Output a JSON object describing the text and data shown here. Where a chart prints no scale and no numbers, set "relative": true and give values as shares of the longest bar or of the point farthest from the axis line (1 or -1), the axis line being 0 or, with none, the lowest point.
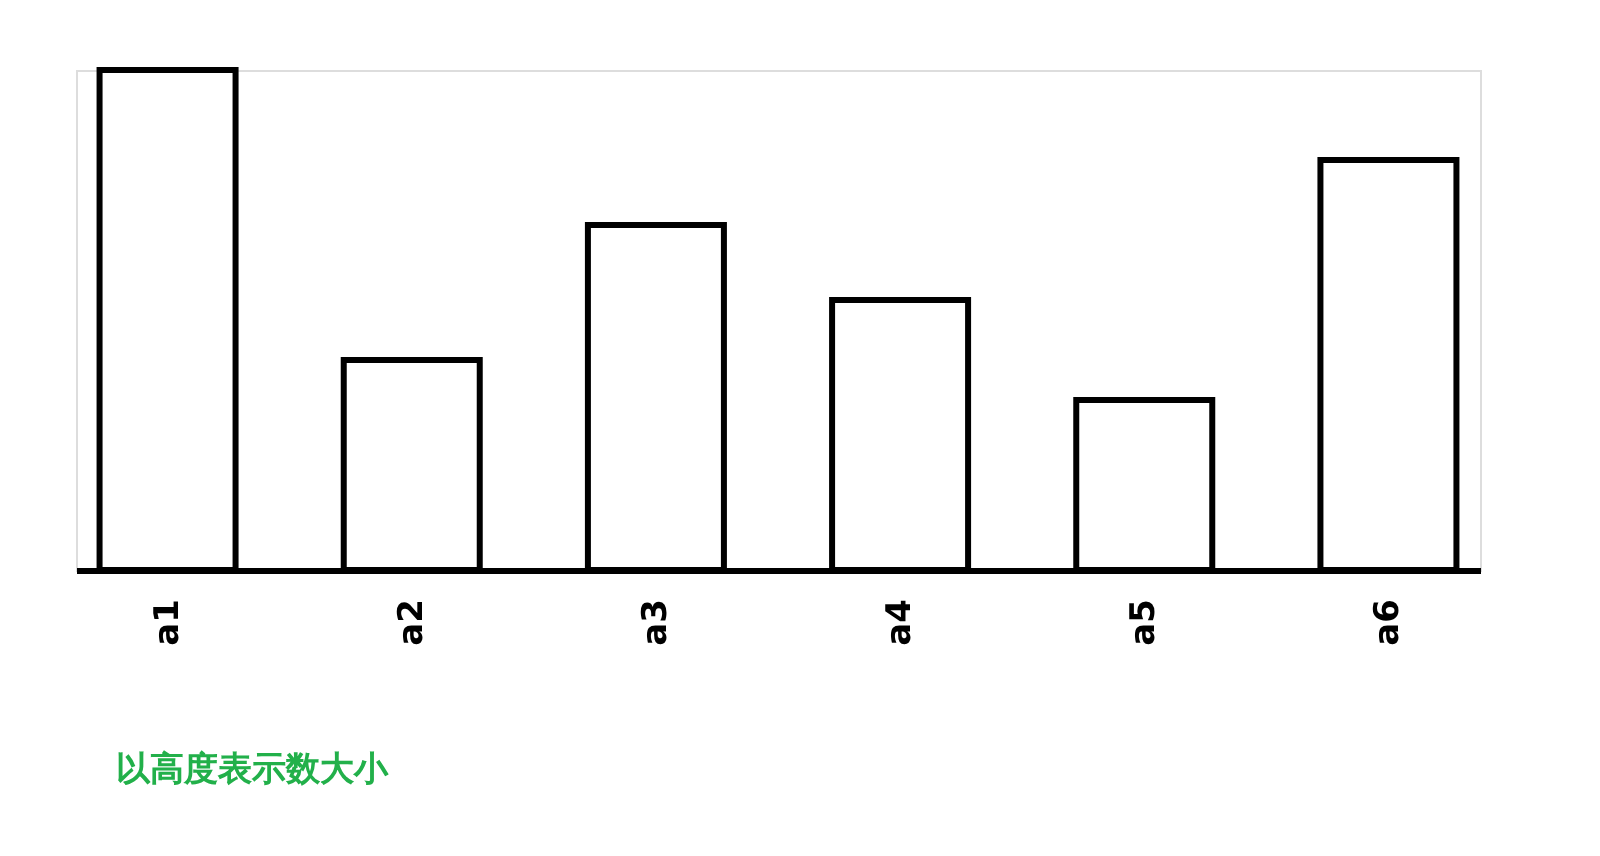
{
  "chart_data": {
    "type": "bar",
    "relative": true,
    "categories": [
      "a1",
      "a2",
      "a3",
      "a4",
      "a5",
      "a6"
    ],
    "values": [
      1,
      0.42,
      0.69,
      0.54,
      0.34,
      0.82
    ],
    "color": "#ffffff",
    "annotations": [
      "以高度表示数大小"
    ]
  }
}
